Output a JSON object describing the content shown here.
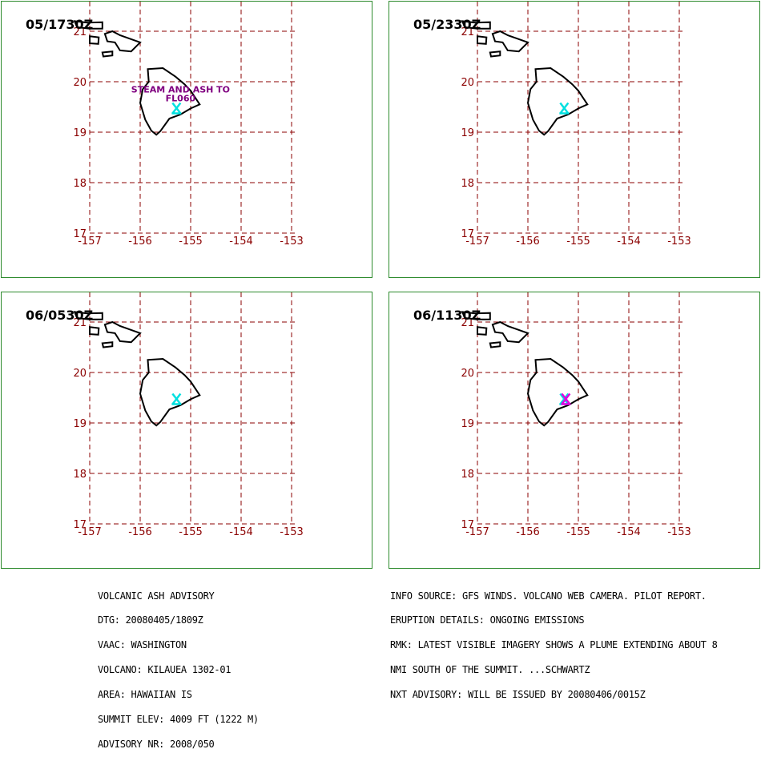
{
  "panels": [
    {
      "time": "05/1730Z",
      "annotation": [
        "STEAM AND ASH TO",
        "FL060"
      ],
      "plume": [
        "#00e0e0"
      ]
    },
    {
      "time": "05/2330Z",
      "annotation": [],
      "plume": [
        "#00e0e0"
      ]
    },
    {
      "time": "06/0530Z",
      "annotation": [],
      "plume": [
        "#00e0e0"
      ]
    },
    {
      "time": "06/1130Z",
      "annotation": [],
      "plume": [
        "#00e0e0",
        "#e000e0"
      ]
    }
  ],
  "map": {
    "lat_labels": [
      "21",
      "20",
      "19",
      "18",
      "17"
    ],
    "lon_labels": [
      "-157",
      "-156",
      "-155",
      "-154",
      "-153"
    ],
    "lat_range": [
      17,
      21
    ],
    "lon_range": [
      -157,
      -153
    ],
    "grid_color": "#8b0000",
    "coast_color": "#000000",
    "annotation_color": "#800080"
  },
  "advisory_left": [
    "VOLCANIC ASH ADVISORY",
    "DTG: 20080405/1809Z",
    "VAAC: WASHINGTON",
    "VOLCANO: KILAUEA 1302-01",
    "AREA: HAWAIIAN IS",
    "SUMMIT ELEV: 4009 FT (1222 M)",
    "ADVISORY NR: 2008/050"
  ],
  "advisory_right": [
    "INFO SOURCE: GFS WINDS. VOLCANO WEB CAMERA. PILOT REPORT.",
    "ERUPTION DETAILS: ONGOING EMISSIONS",
    "RMK: LATEST VISIBLE IMAGERY SHOWS A PLUME EXTENDING ABOUT 8",
    "NMI SOUTH OF THE SUMMIT. ...SCHWARTZ",
    "NXT ADVISORY: WILL BE ISSUED BY 20080406/0015Z"
  ]
}
